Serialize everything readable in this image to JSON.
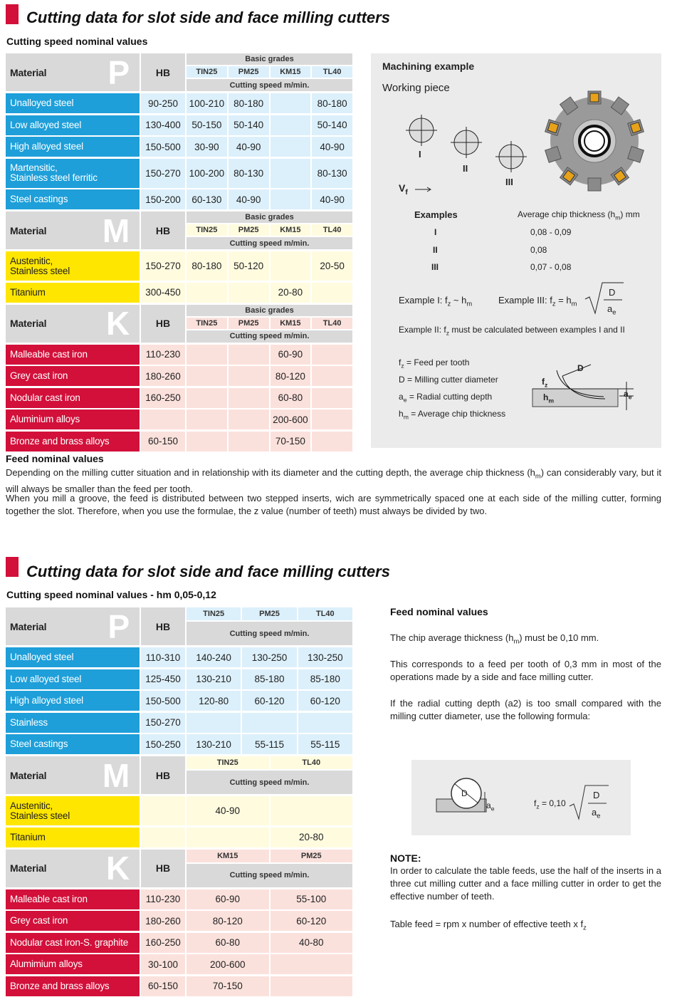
{
  "section_1": {
    "title": "Cutting data for slot side and face milling cutters",
    "subtitle": "Cutting speed nominal values",
    "groups": [
      {
        "letter": "P",
        "color": "#1e9fd9",
        "light": "#dcf0fb",
        "text": "#ffffff",
        "material": "Material",
        "hb": "HB",
        "basic": "Basic grades",
        "grades": [
          "TIN25",
          "PM25",
          "KM15",
          "TL40"
        ],
        "speed": "Cutting speed m/min.",
        "rows": [
          [
            "Unalloyed steel",
            "90-250",
            "100-210",
            "80-180",
            null,
            "80-180"
          ],
          [
            "Low alloyed steel",
            "130-400",
            "50-150",
            "50-140",
            null,
            "50-140"
          ],
          [
            "High alloyed steel",
            "150-500",
            "30-90",
            "40-90",
            null,
            "40-90"
          ],
          [
            "Martensitic,\nStainless steel ferritic",
            "150-270",
            "100-200",
            "80-130",
            null,
            "80-130"
          ],
          [
            "Steel castings",
            "150-200",
            "60-130",
            "40-90",
            null,
            "40-90"
          ]
        ]
      },
      {
        "letter": "M",
        "color": "#ffe600",
        "light": "#fffbdf",
        "text": "#222222",
        "material": "Material",
        "hb": "HB",
        "basic": "Basic grades",
        "grades": [
          "TIN25",
          "PM25",
          "KM15",
          "TL40"
        ],
        "speed": "Cutting speed m/min.",
        "rows": [
          [
            "Austenitic,\nStainless steel",
            "150-270",
            "80-180",
            "50-120",
            null,
            "20-50"
          ],
          [
            "Titanium",
            "300-450",
            null,
            null,
            "20-80",
            null
          ]
        ]
      },
      {
        "letter": "K",
        "color": "#d2103a",
        "light": "#fbe1dc",
        "text": "#ffffff",
        "material": "Material",
        "hb": "HB",
        "basic": "Basic grades",
        "grades": [
          "TIN25",
          "PM25",
          "KM15",
          "TL40"
        ],
        "speed": "Cutting speed m/min.",
        "rows": [
          [
            "Malleable cast iron",
            "110-230",
            null,
            null,
            "60-90",
            null
          ],
          [
            "Grey cast iron",
            "180-260",
            null,
            null,
            "80-120",
            null
          ],
          [
            "Nodular cast iron",
            "160-250",
            null,
            null,
            "60-80",
            null
          ],
          [
            "Aluminium alloys",
            null,
            null,
            null,
            "200-600",
            null
          ],
          [
            "Bronze and brass alloys",
            "60-150",
            null,
            null,
            "70-150",
            null
          ]
        ]
      }
    ]
  },
  "example_panel": {
    "title": "Machining example",
    "working_piece": "Working piece",
    "labels": [
      "I",
      "II",
      "III"
    ],
    "feed_direction": [
      "V",
      {
        "sub": "f"
      }
    ],
    "examples_header": "Examples",
    "thickness_header": [
      "Average chip thickness (h",
      {
        "sub": "m"
      },
      ") mm"
    ],
    "examples": [
      {
        "label": "I",
        "value": "0,08 - 0,09"
      },
      {
        "label": "II",
        "value": "0,08"
      },
      {
        "label": "III",
        "value": "0,07 - 0,08"
      }
    ],
    "example_1": [
      "Example I: f",
      {
        "sub": "z"
      },
      " ~ h",
      {
        "sub": "m"
      }
    ],
    "example_3": {
      "lhs": [
        "Example III: f",
        {
          "sub": "z"
        },
        " = h",
        {
          "sub": "m"
        }
      ],
      "num": "D",
      "den": [
        "a",
        {
          "sub": "e"
        }
      ]
    },
    "example_2": [
      "Example II: f",
      {
        "sub": "z"
      },
      " must be calculated between examples I and II"
    ],
    "legend": [
      [
        "f",
        {
          "sub": "z"
        },
        " = Feed per tooth"
      ],
      "D = Milling cutter diameter",
      [
        "a",
        {
          "sub": "e"
        },
        " = Radial cutting depth"
      ],
      [
        "h",
        {
          "sub": "m"
        },
        " = Average chip thickness"
      ]
    ],
    "diagram_labels": {
      "fz": [
        "f",
        {
          "sub": "z"
        }
      ],
      "d": "D",
      "hm": [
        "h",
        {
          "sub": "m"
        }
      ],
      "ae": [
        "a",
        {
          "sub": "e"
        }
      ]
    }
  },
  "feed_section": {
    "title": "Feed nominal values",
    "paragraphs": [
      [
        "Depending on the milling cutter situation and in relationship with its diameter and the cutting depth, the average chip thickness (h",
        {
          "sub": "m"
        },
        ") can considerably vary, but it will always be smaller than the feed per tooth."
      ],
      "When you mill a groove, the feed is distributed between two stepped inserts, wich are symmetrically spaced one at each side of the milling cutter, forming together the slot. Therefore, when you use the formulae, the z value (number of teeth) must always be divided by two."
    ]
  },
  "section_2": {
    "title": "Cutting data for slot side and face milling cutters",
    "subtitle": "Cutting speed nominal values - hm 0,05-0,12",
    "groups": [
      {
        "letter": "P",
        "color": "#1e9fd9",
        "light": "#dcf0fb",
        "text": "#ffffff",
        "material": "Material",
        "hb": "HB",
        "grades": [
          "TIN25",
          "PM25",
          "TL40"
        ],
        "speed": "Cutting speed m/min.",
        "rows": [
          [
            "Unalloyed steel",
            "110-310",
            "140-240",
            "130-250",
            "130-250"
          ],
          [
            "Low alloyed steel",
            "125-450",
            "130-210",
            "85-180",
            "85-180"
          ],
          [
            "High alloyed steel",
            "150-500",
            "120-80",
            "60-120",
            "60-120"
          ],
          [
            "Stainless",
            "150-270",
            null,
            null,
            null
          ],
          [
            "Steel castings",
            "150-250",
            "130-210",
            "55-115",
            "55-115"
          ]
        ]
      },
      {
        "letter": "M",
        "color": "#ffe600",
        "light": "#fffbdf",
        "text": "#222222",
        "material": "Material",
        "hb": "HB",
        "grades": [
          "TIN25",
          "TL40"
        ],
        "speed": "Cutting speed m/min.",
        "rows": [
          [
            "Austenitic,\nStainless steel",
            null,
            "40-90",
            null
          ],
          [
            "Titanium",
            null,
            null,
            "20-80"
          ]
        ]
      },
      {
        "letter": "K",
        "color": "#d2103a",
        "light": "#fbe1dc",
        "text": "#ffffff",
        "material": "Material",
        "hb": "HB",
        "grades": [
          "KM15",
          "PM25"
        ],
        "speed": "Cutting speed m/min.",
        "rows": [
          [
            "Malleable cast iron",
            "110-230",
            "60-90",
            "55-100"
          ],
          [
            "Grey cast iron",
            "180-260",
            "80-120",
            "60-120"
          ],
          [
            "Nodular cast iron-S. graphite",
            "160-250",
            "60-80",
            "40-80"
          ],
          [
            "Alumimium alloys",
            "30-100",
            "200-600",
            null
          ],
          [
            "Bronze and brass alloys",
            "60-150",
            "70-150",
            null
          ]
        ]
      }
    ]
  },
  "feed_panel": {
    "title": "Feed nominal values",
    "paragraphs": [
      [
        "The chip average thickness (h",
        {
          "sub": "m"
        },
        ") must be 0,10 mm."
      ],
      "This corresponds to a feed per tooth of 0,3 mm in most of the operations made by a side and face milling cutter.",
      "If the radial cutting depth (a2) is too small compared with the milling cutter diameter, use the following formula:"
    ],
    "diagram_labels": {
      "d": "D",
      "ae": [
        "a",
        {
          "sub": "e"
        }
      ]
    },
    "formula": {
      "lhs": [
        "f",
        {
          "sub": "z"
        },
        " = 0,10"
      ],
      "num": "D",
      "den": [
        "a",
        {
          "sub": "e"
        }
      ]
    },
    "note_title": "NOTE:",
    "note": "In order to calculate the table feeds, use the half of the inserts in a three cut milling cutter and a face milling cutter in order to get the effective number of teeth.",
    "table_feed": [
      "Table feed = rpm x number of effective teeth x f",
      {
        "sub": "z"
      }
    ]
  }
}
